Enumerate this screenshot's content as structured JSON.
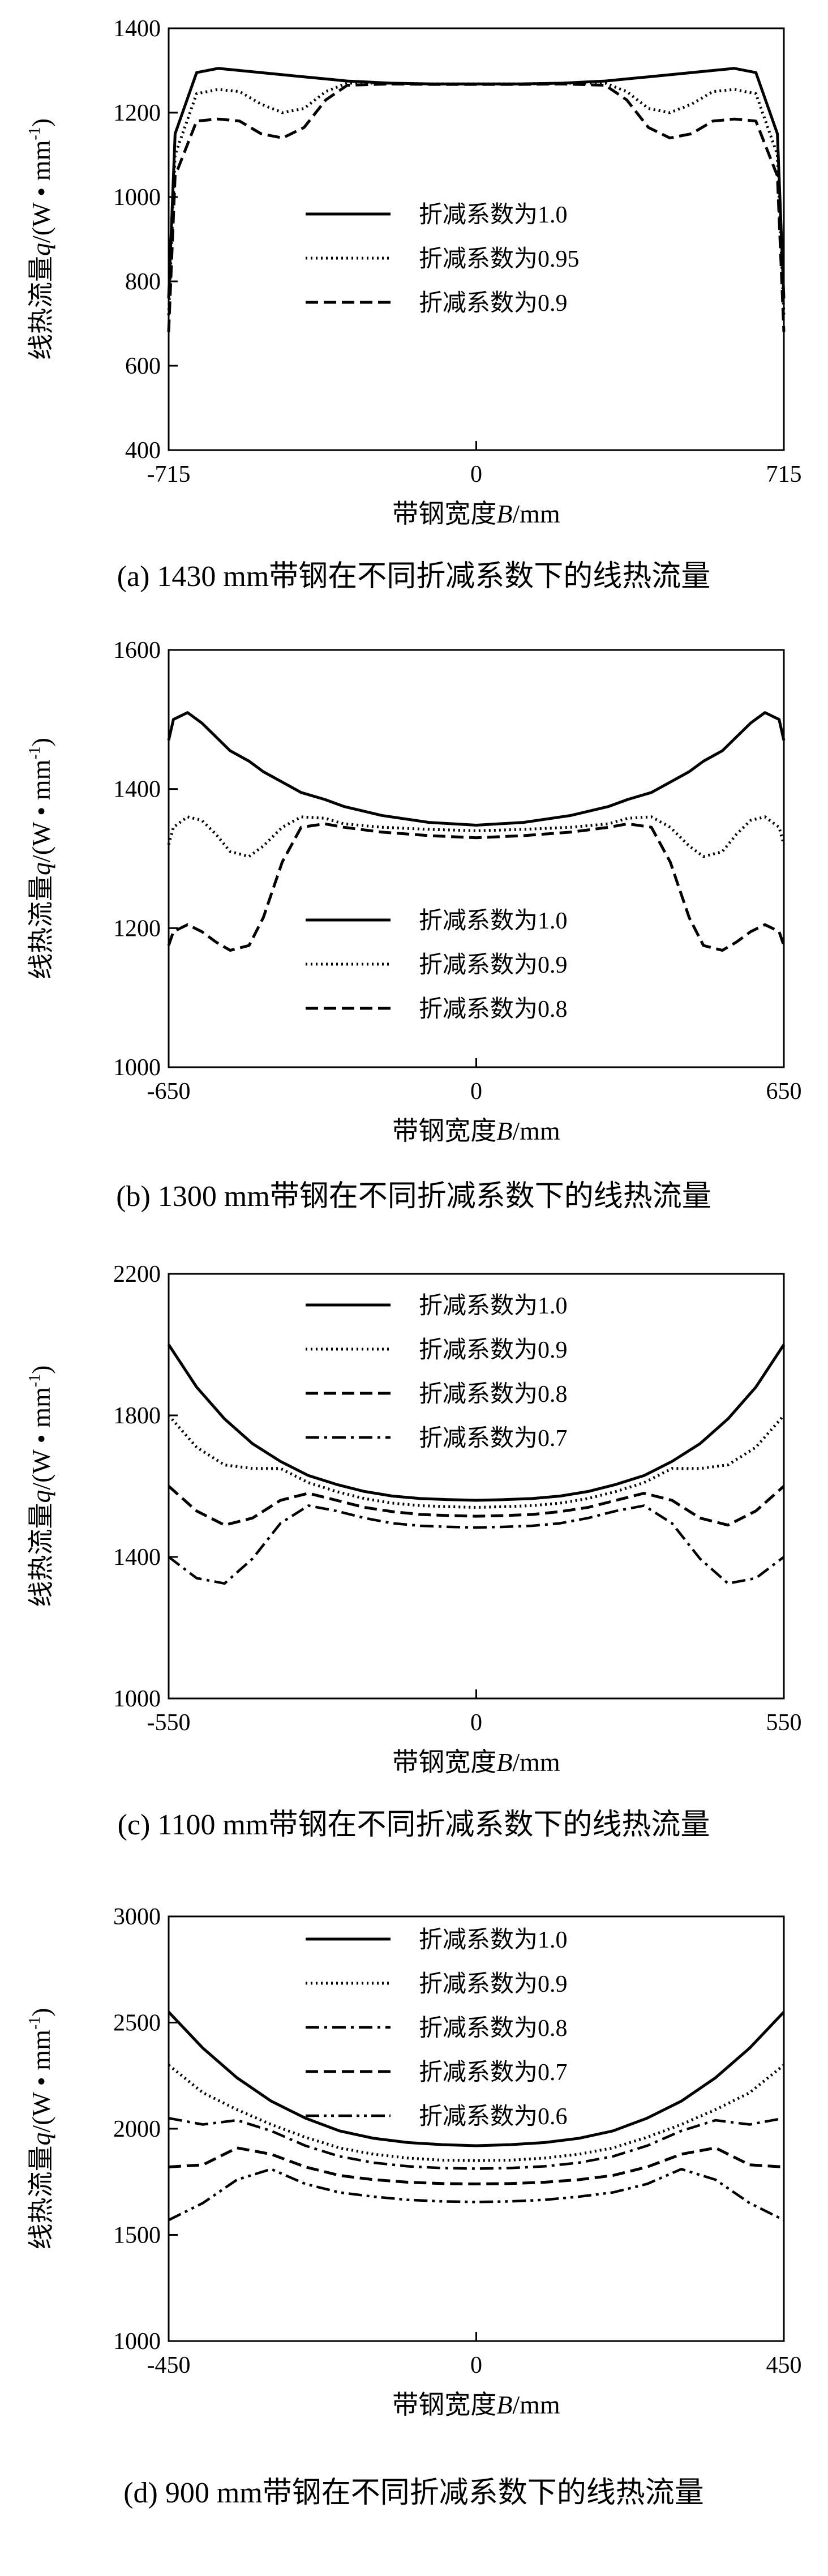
{
  "chart_data": [
    {
      "type": "line",
      "x": [
        -715,
        -700,
        -650,
        -600,
        -550,
        -500,
        -450,
        -400,
        -350,
        -300,
        -200,
        -100,
        0,
        100,
        200,
        300,
        350,
        400,
        450,
        500,
        550,
        600,
        650,
        700,
        715
      ],
      "series": [
        {
          "name": "折减系数为1.0",
          "style": "solid",
          "values": [
            760,
            1150,
            1295,
            1305,
            1300,
            1295,
            1290,
            1285,
            1280,
            1275,
            1270,
            1268,
            1268,
            1268,
            1270,
            1275,
            1280,
            1285,
            1290,
            1295,
            1300,
            1305,
            1295,
            1150,
            760
          ]
        },
        {
          "name": "折减系数为0.95",
          "style": "dotted",
          "values": [
            720,
            1100,
            1245,
            1255,
            1250,
            1220,
            1200,
            1210,
            1250,
            1270,
            1270,
            1268,
            1268,
            1268,
            1270,
            1270,
            1250,
            1210,
            1200,
            1220,
            1250,
            1255,
            1245,
            1100,
            720
          ]
        },
        {
          "name": "折减系数为0.9",
          "style": "dashed",
          "values": [
            680,
            1050,
            1180,
            1185,
            1180,
            1150,
            1140,
            1165,
            1230,
            1265,
            1268,
            1267,
            1267,
            1267,
            1268,
            1265,
            1230,
            1165,
            1140,
            1150,
            1180,
            1185,
            1180,
            1050,
            680
          ]
        }
      ],
      "xlim": [
        -715,
        715
      ],
      "ylim": [
        400,
        1400
      ],
      "xticks": [
        "-715",
        "0",
        "715"
      ],
      "yticks": [
        "400",
        "600",
        "800",
        "1000",
        "1200",
        "1400"
      ],
      "xlabel_prefix": "带钢宽度",
      "xlabel_var": "B",
      "xlabel_unit": "/mm",
      "ylabel_prefix": "线热流量",
      "ylabel_var": "q",
      "ylabel_unit": "/(W • mm",
      "ylabel_sup": "-1",
      "ylabel_end": ")",
      "caption": "(a) 1430 mm带钢在不同折减系数下的线热流量"
    },
    {
      "type": "line",
      "x": [
        -650,
        -640,
        -610,
        -580,
        -550,
        -520,
        -480,
        -450,
        -410,
        -370,
        -320,
        -280,
        -200,
        -100,
        0,
        100,
        200,
        280,
        320,
        370,
        410,
        450,
        480,
        520,
        550,
        580,
        610,
        640,
        650
      ],
      "series": [
        {
          "name": "折减系数为1.0",
          "style": "solid",
          "values": [
            1470,
            1500,
            1510,
            1495,
            1475,
            1455,
            1440,
            1425,
            1410,
            1395,
            1385,
            1375,
            1362,
            1352,
            1348,
            1352,
            1362,
            1375,
            1385,
            1395,
            1410,
            1425,
            1440,
            1455,
            1475,
            1495,
            1510,
            1500,
            1470
          ]
        },
        {
          "name": "折减系数为0.9",
          "style": "dotted",
          "values": [
            1320,
            1345,
            1360,
            1355,
            1335,
            1310,
            1303,
            1318,
            1345,
            1360,
            1358,
            1350,
            1345,
            1342,
            1340,
            1342,
            1345,
            1350,
            1358,
            1360,
            1345,
            1318,
            1303,
            1310,
            1335,
            1355,
            1360,
            1345,
            1320
          ]
        },
        {
          "name": "折减系数为0.8",
          "style": "dashed",
          "values": [
            1175,
            1195,
            1205,
            1195,
            1180,
            1168,
            1175,
            1215,
            1295,
            1345,
            1350,
            1345,
            1338,
            1333,
            1330,
            1333,
            1338,
            1345,
            1350,
            1345,
            1295,
            1215,
            1175,
            1168,
            1180,
            1195,
            1205,
            1195,
            1175
          ]
        }
      ],
      "xlim": [
        -650,
        650
      ],
      "ylim": [
        1000,
        1600
      ],
      "xticks": [
        "-650",
        "0",
        "650"
      ],
      "yticks": [
        "1000",
        "1200",
        "1400",
        "1600"
      ],
      "xlabel_prefix": "带钢宽度",
      "xlabel_var": "B",
      "xlabel_unit": "/mm",
      "ylabel_prefix": "线热流量",
      "ylabel_var": "q",
      "ylabel_unit": "/(W • mm",
      "ylabel_sup": "-1",
      "ylabel_end": ")",
      "caption": "(b) 1300 mm带钢在不同折减系数下的线热流量"
    },
    {
      "type": "line",
      "x": [
        -550,
        -500,
        -450,
        -400,
        -350,
        -300,
        -250,
        -200,
        -150,
        -100,
        -50,
        0,
        50,
        100,
        150,
        200,
        250,
        300,
        350,
        400,
        450,
        500,
        550
      ],
      "series": [
        {
          "name": "折减系数为1.0",
          "style": "solid",
          "values": [
            2000,
            1880,
            1790,
            1720,
            1670,
            1630,
            1605,
            1585,
            1572,
            1565,
            1562,
            1560,
            1562,
            1565,
            1572,
            1585,
            1605,
            1630,
            1670,
            1720,
            1790,
            1880,
            2000
          ]
        },
        {
          "name": "折减系数为0.9",
          "style": "dotted",
          "values": [
            1800,
            1710,
            1660,
            1650,
            1650,
            1610,
            1585,
            1565,
            1552,
            1545,
            1542,
            1540,
            1542,
            1545,
            1552,
            1565,
            1585,
            1610,
            1650,
            1650,
            1660,
            1710,
            1800
          ]
        },
        {
          "name": "折减系数为0.8",
          "style": "dashed",
          "values": [
            1600,
            1530,
            1490,
            1510,
            1560,
            1580,
            1560,
            1540,
            1528,
            1520,
            1517,
            1515,
            1517,
            1520,
            1528,
            1540,
            1560,
            1580,
            1560,
            1510,
            1490,
            1530,
            1600
          ]
        },
        {
          "name": "折减系数为0.7",
          "style": "dashdot",
          "values": [
            1400,
            1340,
            1325,
            1395,
            1495,
            1545,
            1530,
            1510,
            1495,
            1488,
            1485,
            1483,
            1485,
            1488,
            1495,
            1510,
            1530,
            1545,
            1495,
            1395,
            1325,
            1340,
            1400
          ]
        }
      ],
      "xlim": [
        -550,
        550
      ],
      "ylim": [
        1000,
        2200
      ],
      "xticks": [
        "-550",
        "0",
        "550"
      ],
      "yticks": [
        "1000",
        "1400",
        "1800",
        "2200"
      ],
      "xlabel_prefix": "带钢宽度",
      "xlabel_var": "B",
      "xlabel_unit": "/mm",
      "ylabel_prefix": "线热流量",
      "ylabel_var": "q",
      "ylabel_unit": "/(W • mm",
      "ylabel_sup": "-1",
      "ylabel_end": ")",
      "caption": "(c) 1100 mm带钢在不同折减系数下的线热流量"
    },
    {
      "type": "line",
      "x": [
        -450,
        -400,
        -350,
        -300,
        -250,
        -200,
        -150,
        -100,
        -50,
        0,
        50,
        100,
        150,
        200,
        250,
        300,
        350,
        400,
        450
      ],
      "series": [
        {
          "name": "折减系数为1.0",
          "style": "solid",
          "values": [
            2550,
            2380,
            2240,
            2130,
            2050,
            1990,
            1955,
            1935,
            1925,
            1920,
            1925,
            1935,
            1955,
            1990,
            2050,
            2130,
            2240,
            2380,
            2550
          ]
        },
        {
          "name": "折减系数为0.9",
          "style": "dotted",
          "values": [
            2300,
            2170,
            2090,
            2020,
            1960,
            1910,
            1880,
            1862,
            1852,
            1850,
            1852,
            1862,
            1880,
            1910,
            1960,
            2020,
            2090,
            2170,
            2300
          ]
        },
        {
          "name": "折减系数为0.8",
          "style": "dashdot",
          "values": [
            2050,
            2020,
            2040,
            1990,
            1920,
            1870,
            1840,
            1823,
            1815,
            1812,
            1815,
            1823,
            1840,
            1870,
            1920,
            1990,
            2040,
            2020,
            2050
          ]
        },
        {
          "name": "折减系数为0.7",
          "style": "dashed",
          "values": [
            1820,
            1830,
            1910,
            1880,
            1820,
            1780,
            1760,
            1748,
            1742,
            1740,
            1742,
            1748,
            1760,
            1780,
            1820,
            1880,
            1910,
            1830,
            1820
          ]
        },
        {
          "name": "折减系数为0.6",
          "style": "dashdotdot",
          "values": [
            1570,
            1650,
            1760,
            1810,
            1740,
            1700,
            1680,
            1665,
            1658,
            1655,
            1658,
            1665,
            1680,
            1700,
            1740,
            1810,
            1760,
            1650,
            1570
          ]
        }
      ],
      "xlim": [
        -450,
        450
      ],
      "ylim": [
        1000,
        3000
      ],
      "xticks": [
        "-450",
        "0",
        "450"
      ],
      "yticks": [
        "1000",
        "1500",
        "2000",
        "2500",
        "3000"
      ],
      "xlabel_prefix": "带钢宽度",
      "xlabel_var": "B",
      "xlabel_unit": "/mm",
      "ylabel_prefix": "线热流量",
      "ylabel_var": "q",
      "ylabel_unit": "/(W • mm",
      "ylabel_sup": "-1",
      "ylabel_end": ")",
      "caption": "(d) 900 mm带钢在不同折减系数下的线热流量"
    }
  ]
}
